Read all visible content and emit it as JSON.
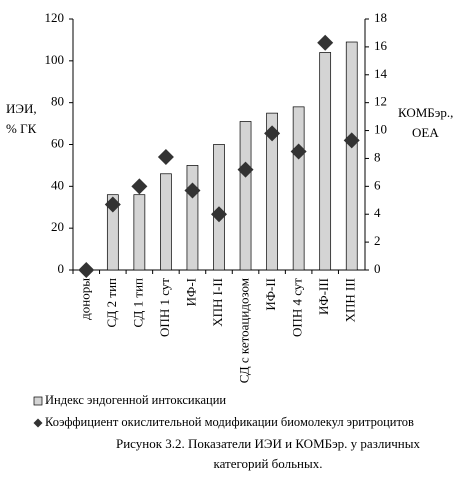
{
  "chart_data": {
    "type": "bar-scatter",
    "y_label": [
      "ИЭИ,",
      "% ГК"
    ],
    "y2_label": [
      "КОМБэр.,",
      "ОЕА"
    ],
    "caption": [
      "Рисунок 3.2.  Показатели ИЭИ и КОМБэр. у различных",
      "категорий больных."
    ],
    "categories": [
      "доноры",
      "СД 2 тип",
      "СД 1 тип",
      "ОПН 1 сут",
      "ИФ-I",
      "ХПН I-II",
      "СД с кетоацидозом",
      "ИФ-II",
      "ОПН  4 сут",
      "ИФ-III",
      "ХПН III"
    ],
    "series": [
      {
        "name": "Индекс эндогенной интоксикации",
        "color": "#d4d4d4",
        "kind": "bar",
        "values": [
          null,
          36,
          36,
          46,
          50,
          60,
          71,
          75,
          78,
          104,
          109
        ]
      },
      {
        "name": "Коэффициент окислительной модификации биомолекул эритроцитов",
        "color": "#333333",
        "kind": "marker",
        "axis": "y2",
        "values": [
          0,
          4.7,
          6.0,
          8.1,
          5.7,
          4.0,
          7.2,
          9.8,
          8.5,
          16.3,
          9.3
        ]
      }
    ],
    "ylim": [
      0,
      120
    ],
    "yticks": [
      0,
      20,
      40,
      60,
      80,
      100,
      120
    ],
    "y2lim": [
      0,
      18
    ],
    "y2ticks": [
      0,
      2,
      4,
      6,
      8,
      10,
      12,
      14,
      16,
      18
    ]
  }
}
